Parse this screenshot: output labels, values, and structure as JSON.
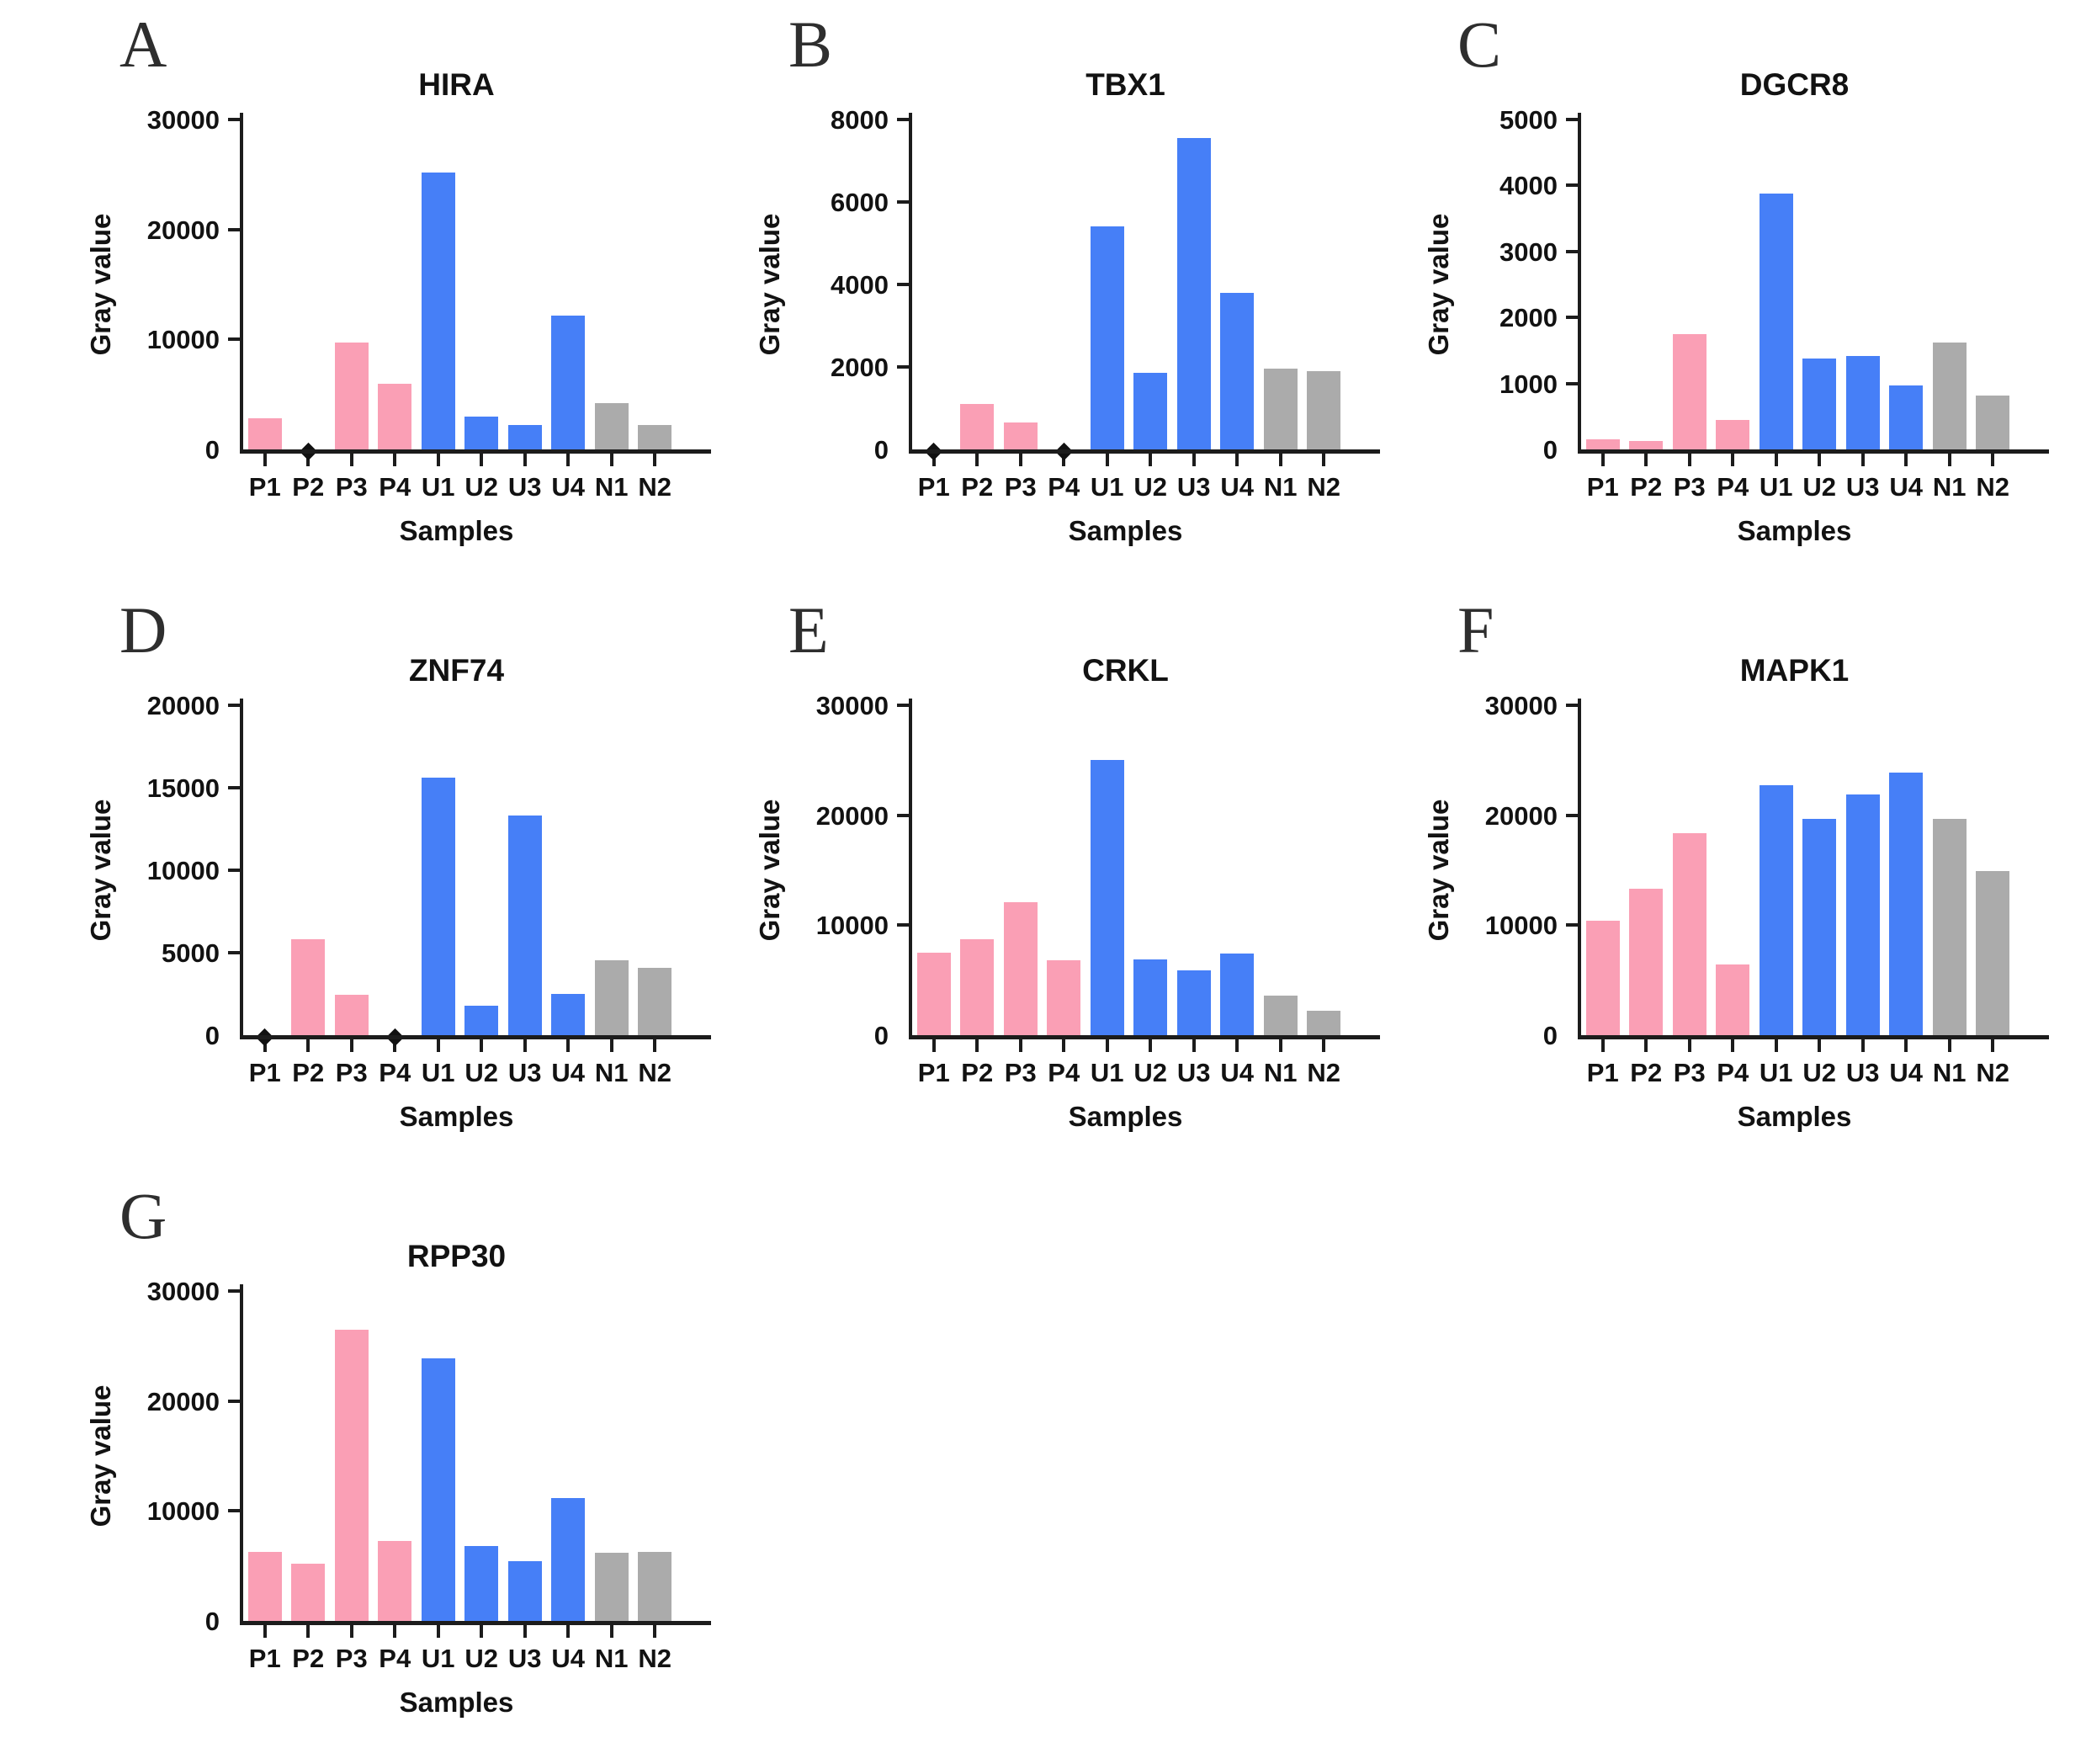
{
  "figure": {
    "kind": "multi-panel bar figure",
    "panels_count": 7,
    "background": "#ffffff"
  },
  "colors": {
    "pink": "#FA9FB5",
    "blue": "#467FF7",
    "gray": "#ABABAB",
    "axis": "#1c1c1c",
    "text": "#121212"
  },
  "group_color_keys": {
    "P": "pink",
    "U": "blue",
    "N": "gray"
  },
  "chart_data": [
    {
      "type": "bar",
      "panel": "A",
      "title": "HIRA",
      "xlabel": "Samples",
      "ylabel": "Gray value",
      "ylim": [
        0,
        30000
      ],
      "yticks": [
        0,
        10000,
        20000,
        30000
      ],
      "grid": false,
      "legend_position": "none",
      "categories": [
        "P1",
        "P2",
        "P3",
        "P4",
        "U1",
        "U2",
        "U3",
        "U4",
        "N1",
        "N2"
      ],
      "values": [
        2800,
        0,
        9700,
        6000,
        25200,
        3000,
        2200,
        12200,
        4200,
        2200
      ],
      "zero_markers": [
        "P2"
      ]
    },
    {
      "type": "bar",
      "panel": "B",
      "title": "TBX1",
      "xlabel": "Samples",
      "ylabel": "Gray value",
      "ylim": [
        0,
        8000
      ],
      "yticks": [
        0,
        2000,
        4000,
        6000,
        8000
      ],
      "grid": false,
      "legend_position": "none",
      "categories": [
        "P1",
        "P2",
        "P3",
        "P4",
        "U1",
        "U2",
        "U3",
        "U4",
        "N1",
        "N2"
      ],
      "values": [
        0,
        1100,
        650,
        0,
        5400,
        1850,
        7550,
        3800,
        1950,
        1900
      ],
      "zero_markers": [
        "P1",
        "P4"
      ]
    },
    {
      "type": "bar",
      "panel": "C",
      "title": "DGCR8",
      "xlabel": "Samples",
      "ylabel": "Gray value",
      "ylim": [
        0,
        5000
      ],
      "yticks": [
        0,
        1000,
        2000,
        3000,
        4000,
        5000
      ],
      "grid": false,
      "legend_position": "none",
      "categories": [
        "P1",
        "P2",
        "P3",
        "P4",
        "U1",
        "U2",
        "U3",
        "U4",
        "N1",
        "N2"
      ],
      "values": [
        150,
        130,
        1750,
        450,
        3880,
        1380,
        1420,
        975,
        1620,
        810
      ],
      "zero_markers": []
    },
    {
      "type": "bar",
      "panel": "D",
      "title": "ZNF74",
      "xlabel": "Samples",
      "ylabel": "Gray value",
      "ylim": [
        0,
        20000
      ],
      "yticks": [
        0,
        5000,
        10000,
        15000,
        20000
      ],
      "grid": false,
      "legend_position": "none",
      "categories": [
        "P1",
        "P2",
        "P3",
        "P4",
        "U1",
        "U2",
        "U3",
        "U4",
        "N1",
        "N2"
      ],
      "values": [
        0,
        5800,
        2450,
        0,
        15600,
        1800,
        13300,
        2500,
        4550,
        4100
      ],
      "zero_markers": [
        "P1",
        "P4"
      ]
    },
    {
      "type": "bar",
      "panel": "E",
      "title": "CRKL",
      "xlabel": "Samples",
      "ylabel": "Gray value",
      "ylim": [
        0,
        30000
      ],
      "yticks": [
        0,
        10000,
        20000,
        30000
      ],
      "grid": false,
      "legend_position": "none",
      "categories": [
        "P1",
        "P2",
        "P3",
        "P4",
        "U1",
        "U2",
        "U3",
        "U4",
        "N1",
        "N2"
      ],
      "values": [
        7500,
        8700,
        12100,
        6800,
        25000,
        6900,
        5900,
        7400,
        3600,
        2200
      ],
      "zero_markers": []
    },
    {
      "type": "bar",
      "panel": "F",
      "title": "MAPK1",
      "xlabel": "Samples",
      "ylabel": "Gray value",
      "ylim": [
        0,
        30000
      ],
      "yticks": [
        0,
        10000,
        20000,
        30000
      ],
      "grid": false,
      "legend_position": "none",
      "categories": [
        "P1",
        "P2",
        "P3",
        "P4",
        "U1",
        "U2",
        "U3",
        "U4",
        "N1",
        "N2"
      ],
      "values": [
        10400,
        13300,
        18400,
        6400,
        22700,
        19700,
        21900,
        23900,
        19700,
        14900
      ],
      "zero_markers": []
    },
    {
      "type": "bar",
      "panel": "G",
      "title": "RPP30",
      "xlabel": "Samples",
      "ylabel": "Gray value",
      "ylim": [
        0,
        30000
      ],
      "yticks": [
        0,
        10000,
        20000,
        30000
      ],
      "grid": false,
      "legend_position": "none",
      "categories": [
        "P1",
        "P2",
        "P3",
        "P4",
        "U1",
        "U2",
        "U3",
        "U4",
        "N1",
        "N2"
      ],
      "values": [
        6300,
        5200,
        26500,
        7300,
        23900,
        6800,
        5400,
        11200,
        6200,
        6300
      ],
      "zero_markers": []
    }
  ]
}
